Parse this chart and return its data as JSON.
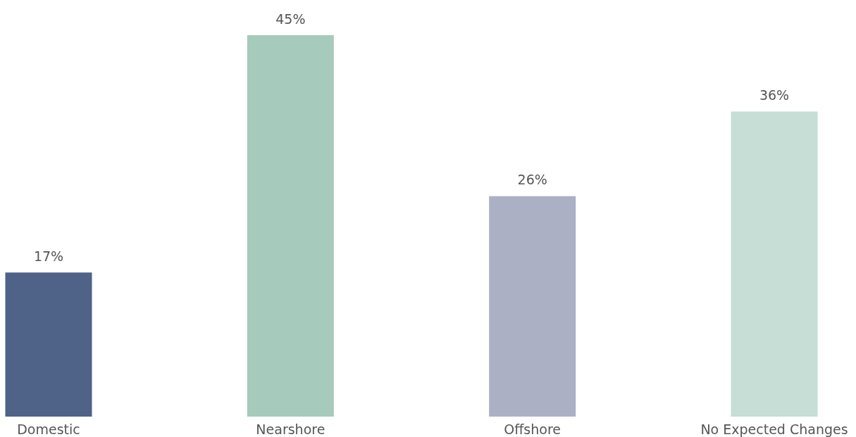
{
  "chart_data": {
    "type": "bar",
    "categories": [
      "Domestic",
      "Nearshore",
      "Offshore",
      "No Expected Changes"
    ],
    "values": [
      17,
      45,
      26,
      36
    ],
    "value_labels": [
      "17%",
      "45%",
      "26%",
      "36%"
    ],
    "colors": [
      "#4f6288",
      "#a6cabb",
      "#abb0c5",
      "#c6ded5"
    ]
  }
}
